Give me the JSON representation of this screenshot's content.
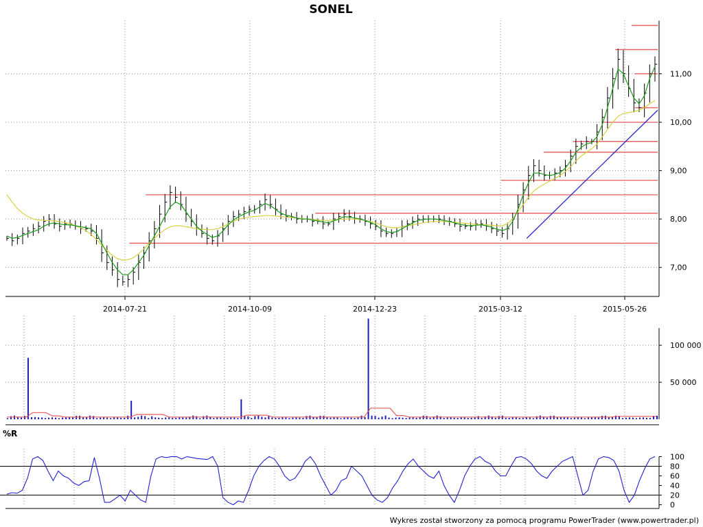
{
  "chart_data": [
    {
      "type": "ohlc",
      "title": "SONEL",
      "xlabel": "",
      "ylabel": "",
      "ylim": [
        6.4,
        12.1
      ],
      "y_ticks": [
        "7,00",
        "8,00",
        "9,00",
        "10,00",
        "11,00"
      ],
      "y_tick_values": [
        7.0,
        8.0,
        9.0,
        10.0,
        11.0
      ],
      "x_ticks": [
        "2014-07-21",
        "2014-10-09",
        "2014-12-23",
        "2015-03-12",
        "2015-05-26"
      ],
      "grid": true,
      "colors": {
        "bars": "#000000",
        "ma_short": "#1a9a1a",
        "ma_long": "#d8d040",
        "resistance": "#e85a5a",
        "trendline": "#2a2acc"
      },
      "close_series_approx": [
        7.6,
        7.55,
        7.6,
        7.7,
        7.75,
        7.8,
        7.85,
        7.95,
        8.0,
        7.9,
        7.85,
        7.9,
        7.9,
        7.85,
        7.8,
        7.8,
        7.75,
        7.6,
        7.3,
        7.1,
        6.95,
        6.75,
        6.7,
        6.75,
        6.9,
        7.1,
        7.3,
        7.55,
        7.8,
        8.1,
        8.35,
        8.55,
        8.45,
        8.3,
        8.1,
        7.95,
        7.8,
        7.7,
        7.6,
        7.55,
        7.65,
        7.8,
        7.95,
        8.05,
        8.1,
        8.15,
        8.2,
        8.2,
        8.3,
        8.4,
        8.3,
        8.2,
        8.1,
        8.05,
        8.05,
        8.0,
        8.0,
        8.0,
        7.95,
        7.95,
        7.9,
        7.9,
        8.0,
        8.05,
        8.1,
        8.05,
        8.0,
        8.0,
        7.95,
        7.9,
        7.85,
        7.75,
        7.7,
        7.7,
        7.75,
        7.85,
        7.9,
        7.95,
        8.0,
        8.0,
        8.0,
        8.0,
        8.0,
        7.95,
        7.95,
        7.9,
        7.85,
        7.85,
        7.85,
        7.9,
        7.9,
        7.85,
        7.8,
        7.75,
        7.7,
        7.8,
        8.0,
        8.3,
        8.6,
        8.9,
        9.1,
        9.0,
        8.9,
        8.9,
        8.95,
        9.0,
        9.1,
        9.3,
        9.5,
        9.55,
        9.6,
        9.6,
        9.8,
        10.1,
        10.5,
        10.9,
        11.3,
        11.0,
        10.7,
        10.4,
        10.3,
        10.6,
        11.0,
        11.2
      ],
      "ma_short_approx": [
        7.65,
        7.6,
        7.62,
        7.66,
        7.7,
        7.74,
        7.78,
        7.85,
        7.9,
        7.92,
        7.9,
        7.88,
        7.88,
        7.86,
        7.84,
        7.82,
        7.8,
        7.7,
        7.5,
        7.3,
        7.1,
        6.95,
        6.85,
        6.85,
        6.95,
        7.1,
        7.25,
        7.45,
        7.65,
        7.85,
        8.05,
        8.25,
        8.35,
        8.3,
        8.15,
        8.0,
        7.85,
        7.75,
        7.68,
        7.62,
        7.65,
        7.75,
        7.88,
        7.98,
        8.05,
        8.1,
        8.15,
        8.18,
        8.25,
        8.32,
        8.28,
        8.2,
        8.12,
        8.08,
        8.05,
        8.02,
        8.0,
        8.0,
        7.98,
        7.96,
        7.94,
        7.92,
        7.96,
        8.0,
        8.05,
        8.04,
        8.02,
        8.0,
        7.97,
        7.93,
        7.88,
        7.8,
        7.74,
        7.72,
        7.74,
        7.8,
        7.86,
        7.92,
        7.97,
        7.99,
        8.0,
        8.0,
        7.99,
        7.97,
        7.95,
        7.92,
        7.89,
        7.87,
        7.86,
        7.87,
        7.88,
        7.86,
        7.83,
        7.79,
        7.76,
        7.8,
        7.95,
        8.2,
        8.5,
        8.75,
        8.95,
        8.95,
        8.92,
        8.9,
        8.92,
        8.96,
        9.05,
        9.2,
        9.38,
        9.48,
        9.55,
        9.58,
        9.7,
        9.95,
        10.3,
        10.7,
        11.1,
        11.0,
        10.75,
        10.5,
        10.38,
        10.55,
        10.9,
        11.15
      ],
      "ma_long_approx": [
        8.5,
        8.35,
        8.22,
        8.12,
        8.05,
        8.0,
        7.98,
        7.97,
        7.97,
        7.96,
        7.95,
        7.93,
        7.9,
        7.86,
        7.82,
        7.76,
        7.68,
        7.58,
        7.46,
        7.35,
        7.25,
        7.18,
        7.15,
        7.16,
        7.2,
        7.28,
        7.38,
        7.5,
        7.6,
        7.7,
        7.78,
        7.84,
        7.86,
        7.86,
        7.84,
        7.82,
        7.8,
        7.79,
        7.78,
        7.78,
        7.8,
        7.84,
        7.9,
        7.95,
        8.0,
        8.02,
        8.04,
        8.05,
        8.06,
        8.07,
        8.07,
        8.06,
        8.05,
        8.04,
        8.03,
        8.02,
        8.01,
        8.0,
        7.99,
        7.98,
        7.97,
        7.97,
        7.98,
        7.99,
        8.0,
        8.0,
        8.0,
        7.99,
        7.97,
        7.95,
        7.92,
        7.88,
        7.84,
        7.82,
        7.82,
        7.84,
        7.86,
        7.88,
        7.9,
        7.92,
        7.94,
        7.95,
        7.95,
        7.95,
        7.94,
        7.93,
        7.92,
        7.91,
        7.9,
        7.89,
        7.88,
        7.88,
        7.87,
        7.86,
        7.86,
        7.9,
        8.0,
        8.15,
        8.3,
        8.45,
        8.58,
        8.66,
        8.72,
        8.78,
        8.84,
        8.9,
        8.98,
        9.08,
        9.2,
        9.3,
        9.38,
        9.45,
        9.55,
        9.7,
        9.85,
        10.0,
        10.12,
        10.18,
        10.2,
        10.22,
        10.25,
        10.3,
        10.38,
        10.45
      ],
      "resistance_levels": [
        {
          "from": 0.19,
          "to": 1.0,
          "value": 7.5
        },
        {
          "from": 0.215,
          "to": 1.0,
          "value": 8.5
        },
        {
          "from": 0.475,
          "to": 1.0,
          "value": 8.12
        },
        {
          "from": 0.76,
          "to": 1.0,
          "value": 8.8
        },
        {
          "from": 0.825,
          "to": 1.0,
          "value": 9.38
        },
        {
          "from": 0.87,
          "to": 1.0,
          "value": 9.6
        },
        {
          "from": 0.915,
          "to": 1.0,
          "value": 10.0
        },
        {
          "from": 0.965,
          "to": 1.0,
          "value": 10.3
        },
        {
          "from": 0.965,
          "to": 1.0,
          "value": 11.0
        },
        {
          "from": 0.935,
          "to": 1.0,
          "value": 11.5
        },
        {
          "from": 0.96,
          "to": 1.0,
          "value": 12.0
        }
      ],
      "trendline": {
        "from_value": 7.6,
        "to_value": 10.25,
        "from": 0.795,
        "to": 1.0
      }
    },
    {
      "type": "bar",
      "name": "volume",
      "y_ticks": [
        "50 000",
        "100 000"
      ],
      "y_tick_values": [
        50000,
        100000
      ],
      "ylim": [
        0,
        140000
      ],
      "colors": {
        "bars": "#1c1cb4",
        "avg": "#e85a5a"
      },
      "spikes": [
        {
          "pos": 0.03,
          "value": 83000
        },
        {
          "pos": 0.19,
          "value": 25000
        },
        {
          "pos": 0.36,
          "value": 27000
        },
        {
          "pos": 0.555,
          "value": 136000
        }
      ]
    },
    {
      "type": "line",
      "name": "%R",
      "label": "%R",
      "y_ticks": [
        "0",
        "20",
        "40",
        "60",
        "80",
        "100"
      ],
      "y_tick_values": [
        0,
        20,
        40,
        60,
        80,
        100
      ],
      "ylim": [
        -2,
        102
      ],
      "ref_lines": [
        20,
        80
      ],
      "colors": {
        "line": "#2020d0"
      },
      "values_approx": [
        22,
        25,
        24,
        30,
        55,
        95,
        100,
        92,
        70,
        50,
        70,
        60,
        55,
        45,
        40,
        48,
        50,
        98,
        55,
        5,
        5,
        12,
        20,
        8,
        30,
        20,
        10,
        5,
        60,
        95,
        100,
        98,
        100,
        100,
        95,
        100,
        98,
        96,
        95,
        94,
        100,
        80,
        15,
        5,
        0,
        8,
        5,
        30,
        60,
        80,
        92,
        100,
        95,
        80,
        60,
        50,
        55,
        70,
        90,
        100,
        85,
        60,
        40,
        20,
        30,
        50,
        55,
        80,
        70,
        60,
        40,
        20,
        10,
        5,
        15,
        35,
        50,
        70,
        85,
        95,
        80,
        70,
        60,
        55,
        70,
        40,
        20,
        5,
        30,
        60,
        80,
        95,
        100,
        90,
        85,
        70,
        60,
        60,
        80,
        98,
        100,
        95,
        85,
        70,
        60,
        55,
        70,
        80,
        90,
        95,
        100,
        60,
        20,
        30,
        70,
        95,
        100,
        98,
        92,
        70,
        30,
        5,
        20,
        50,
        75,
        95,
        100
      ]
    }
  ],
  "footer": "Wykres został stworzony za pomocą programu PowerTrader (www.powertrader.pl)"
}
